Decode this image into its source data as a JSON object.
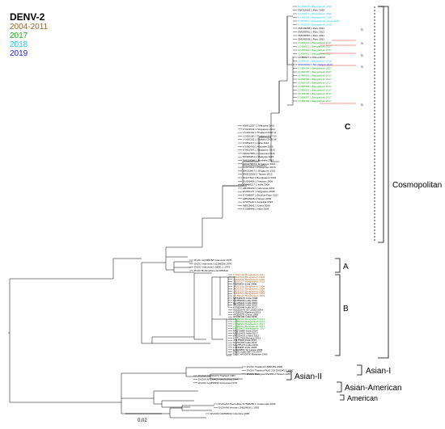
{
  "legend": {
    "title": "DENV-2",
    "items": [
      {
        "label": "2004-2011",
        "color": "#a0642a"
      },
      {
        "label": "2017",
        "color": "#22aa22"
      },
      {
        "label": "2018",
        "color": "#22c8e6"
      },
      {
        "label": "2019",
        "color": "#1c1cd8"
      }
    ]
  },
  "labels": {
    "cosmopolitan": "Cosmopolitan",
    "asian_i": "Asian-I",
    "asian_ii": "Asian-II",
    "asian_american": "Asian-American",
    "american": "American",
    "clade_a": "A",
    "clade_b": "B",
    "clade_c": "C",
    "scale": "0.02",
    "s_marker": "S"
  },
  "leaves": {
    "c_top": [
      "KY451835.1 Bangladesh 2018",
      "OM781691.1 Peru 2019",
      "KY451874.1 Bangladesh 2018",
      "KY451869.1 Bangladesh 2018",
      "KY451851.1 Bangladesh China 2018",
      "KY451868.1 Bangladesh 2018",
      "OM145958.1 Peru 2021",
      "OM145961.1 Peru 2021",
      "OM145957.1 Peru 2021",
      "OM145938.1 Peru 2021",
      "LC458921.1 Bangladesh 2017",
      "LC458917.1 Bangladesh 2017",
      "LC458914.1 Bangladesh 2017",
      "LC458915.1 Bangladesh 2017",
      "LC458917.1 China 2019",
      "LC458916.1 Bangladesh 2018",
      "MN429891.1 Bangladesh 2019",
      "LC458904.1 Bangladesh 2017",
      "LC458900.1 Bangladesh 2017",
      "LC458902.1 Bangladesh 2017",
      "LC458908.1 Bangladesh 2017",
      "LC458903.1 Bangladesh 2017",
      "LC458906.1 Bangladesh 2017",
      "LC458901.1 Bangladesh 2017",
      "LC458905.1 Bangladesh 2017",
      "LC458907.1 Bangladesh 2017",
      "LC458909.1 Bangladesh 2017"
    ],
    "c_mid": [
      "MW512557.1 Malaysia 2016",
      "KY021541.1 Singapore 2014",
      "LC410161.1 Thailand 2018 11",
      "LC410160.1 Thailand 2017 03",
      "LC410162.1 Thailand 2018 08",
      "KX851377.1 India 2016",
      "KX380799.1 Australia 2015",
      "KT431967.1 Singapore 2015",
      "MK047655.1 Indonesia 2016",
      "MK506264.1 Malaysia 2015",
      "MN018384.1 Australia 2017",
      "MK947963.1 Singapore 2016",
      "KU670411.1 Philippines 2015",
      "MK033407.1 Singapore 2015",
      "MW512596.1 Taiwan 2015",
      "JF327392.1 Bangladesh 2002",
      "EU596486.1 Vietnam 2008",
      "HM488217.1 India 2009",
      "AB189129.1 Indonesia 2004",
      "EU081177.1 Singapore 2005",
      "KY586457.1 Burkina Faso 2012",
      "AB543668.1 Taiwan 2002",
      "AY037116.1 Australia 1993",
      "AB519681.1 China 2000",
      "KY586488.1 India 2004"
    ],
    "a": [
      "DV2C GQ398258 Indonesia 1976",
      "DV2C Indonesia GQ398256 1976",
      "DV2C Indonesia L10041.1 1975",
      "DV2C BurkinaFaso EU056810"
    ],
    "b": [
      "KT810192 Bangladesh 2011",
      "JN032515 Bangladesh 2008",
      "JN032516 Bangladesh 2009",
      "JN032517 Bangladesh 2010",
      "FJ898454 India 2006",
      "JN032519 Bangladesh 2008",
      "JN032512 Bangladesh 2006",
      "JN032514 Bangladesh 2008",
      "JN032513 Bangladesh 2006",
      "LC464124 Bangladesh 2009",
      "MK568133 India 2008",
      "KX380806 India 2009",
      "EU196441 India 2009",
      "KP296434 India 2010",
      "KF955444 India 2012",
      "GQ252676 Sri Lanka 2004",
      "KJ189221 Pakistan 2013",
      "AF359579 China 1999",
      "AF038402 India 1996",
      "LC458912 Bangladesh 2017",
      "LC458913 Bangladesh 2017",
      "LC458910 Bangladesh 2017",
      "LC458911 Bangladesh 2017",
      "MK528431 Bangladesh 2017",
      "MK570888 India 2014",
      "MN510471 India 2017",
      "KP331418.1 India 2013",
      "KC713744 Ethiopia 2012",
      "JX475906 India 2010",
      "KF744404 India 2011",
      "MG787473 India 2018",
      "FJ898455 India 2008",
      "EU920861 Sri Lanka 1996",
      "DV2C India NBT Sri 1974",
      "DV2C AF2097E Malaysia 1992"
    ],
    "asian_i": [
      "DV2AI Thailand FJ886452 2008",
      "DV2AI Thailand PUO 218 D00345.1 1980",
      "DV2AI Malaysia MW490.2 Taiwan 1987"
    ],
    "asian_ii": [
      "DV2AII NC001474 Thailand 1987",
      "DV2AII AF038403 NewGuinea 1944",
      "DV2AII GQ398256 Indonesia 1976"
    ],
    "asian_american": [
      "DV2AAM PuertoRico KY568286.1 Guatemala 2009",
      "DV2AAM Vietnam JN819418.1 1992"
    ],
    "american": [
      "DV2AM GQ868002 Colombia 1986"
    ]
  }
}
